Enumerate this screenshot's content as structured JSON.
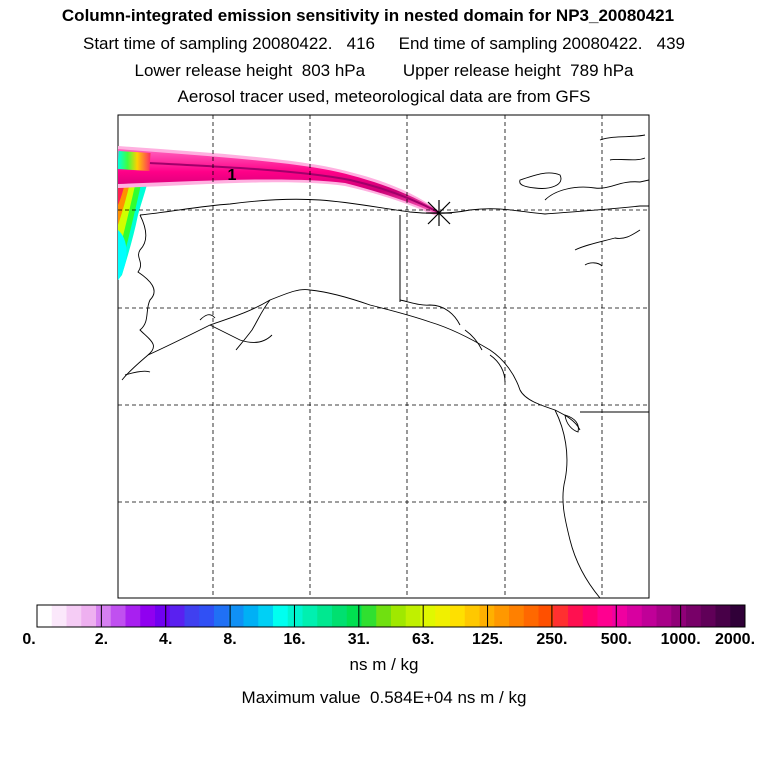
{
  "header": {
    "title": "Column-integrated emission sensitivity in nested domain for NP3_20080421",
    "sampling_line": "Start time of sampling 20080422.   416     End time of sampling 20080422.   439",
    "release_line": "Lower release height  803 hPa        Upper release height  789 hPa",
    "tracer_line": "Aerosol tracer used, meteorological data are from GFS"
  },
  "map": {
    "contour_label": "1",
    "release_marker": "release-point",
    "plume_colors": [
      "#ff00aa",
      "#e0007a",
      "#ff66c0",
      "#ff3399",
      "#cc0088"
    ]
  },
  "colorbar": {
    "labels": [
      "0.",
      "2.",
      "4.",
      "8.",
      "16.",
      "31.",
      "63.",
      "125.",
      "250.",
      "500.",
      "1000.",
      "2000."
    ],
    "colors": [
      "#ffffff",
      "#fbe8fb",
      "#f5ccf5",
      "#eeb0f0",
      "#d680f0",
      "#c050f0",
      "#a820f0",
      "#9000f0",
      "#7000f0",
      "#5a20f0",
      "#4040f0",
      "#3050f5",
      "#2070f5",
      "#1090f5",
      "#00b0f5",
      "#00d0f5",
      "#00fff0",
      "#00f5d0",
      "#00f0b0",
      "#00e890",
      "#00e070",
      "#00e050",
      "#30e030",
      "#70e010",
      "#a0e800",
      "#c0f000",
      "#e0f800",
      "#f0f000",
      "#ffe000",
      "#ffc800",
      "#ffb000",
      "#ff9800",
      "#ff8000",
      "#ff6800",
      "#ff5000",
      "#ff3030",
      "#ff1050",
      "#ff0070",
      "#ff0090",
      "#f000a0",
      "#d800a0",
      "#c00098",
      "#a80088",
      "#900078",
      "#780068",
      "#600058",
      "#480048",
      "#300038"
    ],
    "units": "ns m / kg"
  },
  "footer": {
    "max_value": "Maximum value  0.584E+04 ns m / kg"
  }
}
